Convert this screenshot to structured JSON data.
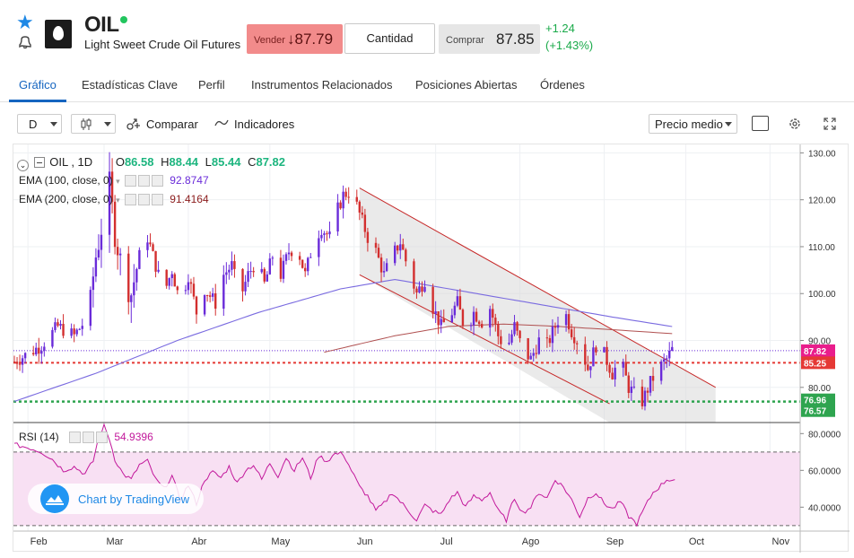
{
  "header": {
    "symbol": "OIL",
    "full_name": "Light Sweet Crude Oil Futures",
    "sell_label": "Vender",
    "sell_price": "↓87.79",
    "quantity_label": "Cantidad",
    "buy_label": "Comprar",
    "buy_price": "87.85",
    "change_abs": "+1.24",
    "change_pct": "(+1.43%)",
    "live_color": "#22c55e"
  },
  "tabs": [
    {
      "label": "Gráfico",
      "active": true
    },
    {
      "label": "Estadísticas Clave"
    },
    {
      "label": "Perfil"
    },
    {
      "label": "Instrumentos Relacionados"
    },
    {
      "label": "Posiciones Abiertas"
    },
    {
      "label": "Órdenes"
    }
  ],
  "toolbar": {
    "interval": "D",
    "compare_label": "Comparar",
    "indicators_label": "Indicadores",
    "price_type": "Precio medio"
  },
  "legend": {
    "title": "OIL , 1D",
    "o_label": "O",
    "o": "86.58",
    "h_label": "H",
    "h": "88.44",
    "l_label": "L",
    "l": "85.44",
    "c_label": "C",
    "c": "87.82",
    "ema100_label": "EMA (100, close, 0)",
    "ema100_value": "92.8747",
    "ema200_label": "EMA (200, close, 0)",
    "ema200_value": "91.4164",
    "rsi_label": "RSI (14)",
    "rsi_value": "54.9396"
  },
  "branding": "Chart by TradingView",
  "price_tags": {
    "last": "87.82",
    "red_line": "85.25",
    "green_line": "76.96",
    "low": "76.57"
  },
  "colors": {
    "up": "#6a2bd9",
    "down": "#d32f2f",
    "ema100": "#7a6be0",
    "ema200": "#b05050",
    "rsi": "#c2189b",
    "channel": "#c62828",
    "red_line": "#e53935",
    "green_line": "#2ea44f",
    "last_tag": "#e91e8c"
  },
  "chart_data": {
    "type": "candlestick",
    "price_axis_ticks": [
      130,
      120,
      110,
      100,
      90,
      80
    ],
    "price_axis_labels": [
      "130.00",
      "120.00",
      "110.00",
      "100.00",
      "90.00",
      "80.00"
    ],
    "rsi_axis_ticks": [
      80,
      60,
      40
    ],
    "rsi_axis_labels": [
      "80.0000",
      "60.0000",
      "40.0000"
    ],
    "rsi_bands": [
      70,
      30
    ],
    "x_labels": [
      "Feb",
      "Mar",
      "Abr",
      "May",
      "Jun",
      "Jul",
      "Ago",
      "Sep",
      "Oct",
      "Nov"
    ],
    "x_label_days": [
      5,
      33,
      64,
      94,
      125,
      155,
      186,
      217,
      247,
      278
    ],
    "ylim": [
      72.5,
      131.8
    ],
    "rsi_ylim": [
      27,
      86
    ],
    "close_anchors": [
      [
        0,
        85.5
      ],
      [
        6,
        87.5
      ],
      [
        10,
        89
      ],
      [
        16,
        93
      ],
      [
        22,
        91
      ],
      [
        27,
        95
      ],
      [
        30,
        108
      ],
      [
        33,
        117
      ],
      [
        35,
        123
      ],
      [
        37,
        113
      ],
      [
        40,
        104
      ],
      [
        43,
        100
      ],
      [
        46,
        108
      ],
      [
        49,
        112
      ],
      [
        52,
        106
      ],
      [
        55,
        100
      ],
      [
        58,
        105
      ],
      [
        61,
        98
      ],
      [
        64,
        104
      ],
      [
        67,
        96
      ],
      [
        70,
        101
      ],
      [
        74,
        98
      ],
      [
        77,
        104
      ],
      [
        80,
        106
      ],
      [
        83,
        99
      ],
      [
        86,
        104
      ],
      [
        89,
        107
      ],
      [
        92,
        102
      ],
      [
        95,
        108
      ],
      [
        98,
        104
      ],
      [
        101,
        109
      ],
      [
        104,
        110
      ],
      [
        107,
        104
      ],
      [
        110,
        111
      ],
      [
        113,
        114
      ],
      [
        116,
        112
      ],
      [
        119,
        118
      ],
      [
        121,
        121
      ],
      [
        124,
        122
      ],
      [
        127,
        117
      ],
      [
        130,
        112
      ],
      [
        133,
        109
      ],
      [
        136,
        104
      ],
      [
        139,
        108
      ],
      [
        142,
        111
      ],
      [
        145,
        105
      ],
      [
        148,
        100
      ],
      [
        151,
        103
      ],
      [
        154,
        97
      ],
      [
        157,
        93
      ],
      [
        160,
        95
      ],
      [
        163,
        98
      ],
      [
        166,
        92
      ],
      [
        169,
        96
      ],
      [
        172,
        94
      ],
      [
        175,
        97
      ],
      [
        178,
        91
      ],
      [
        181,
        88
      ],
      [
        184,
        93
      ],
      [
        187,
        88
      ],
      [
        190,
        86
      ],
      [
        193,
        90
      ],
      [
        196,
        89
      ],
      [
        199,
        93
      ],
      [
        202,
        97
      ],
      [
        205,
        92
      ],
      [
        208,
        89
      ],
      [
        211,
        84
      ],
      [
        214,
        89
      ],
      [
        217,
        87
      ],
      [
        220,
        83
      ],
      [
        223,
        86
      ],
      [
        226,
        80
      ],
      [
        229,
        78
      ],
      [
        231,
        77
      ],
      [
        234,
        81
      ],
      [
        237,
        84
      ],
      [
        240,
        86
      ],
      [
        242,
        88
      ],
      [
        243,
        87.82
      ]
    ],
    "ema100": [
      [
        0,
        77
      ],
      [
        30,
        83
      ],
      [
        60,
        90
      ],
      [
        90,
        96
      ],
      [
        120,
        101
      ],
      [
        140,
        103
      ],
      [
        160,
        101
      ],
      [
        180,
        99
      ],
      [
        200,
        97
      ],
      [
        220,
        95
      ],
      [
        243,
        92.87
      ]
    ],
    "ema200_start_day": 114,
    "ema200": [
      [
        114,
        87.5
      ],
      [
        140,
        91
      ],
      [
        160,
        93
      ],
      [
        180,
        93.5
      ],
      [
        200,
        93
      ],
      [
        220,
        92.3
      ],
      [
        243,
        91.42
      ]
    ],
    "channel_upper": [
      [
        127,
        122.5
      ],
      [
        258,
        80
      ]
    ],
    "channel_lower": [
      [
        127,
        104
      ],
      [
        219,
        76.5
      ]
    ],
    "rsi_anchors": [
      [
        0,
        74
      ],
      [
        6,
        72
      ],
      [
        10,
        70
      ],
      [
        14,
        66
      ],
      [
        18,
        60
      ],
      [
        22,
        62
      ],
      [
        26,
        58
      ],
      [
        29,
        65
      ],
      [
        31,
        78
      ],
      [
        33,
        84
      ],
      [
        35,
        77
      ],
      [
        37,
        66
      ],
      [
        40,
        58
      ],
      [
        43,
        55
      ],
      [
        46,
        63
      ],
      [
        49,
        65
      ],
      [
        52,
        55
      ],
      [
        55,
        50
      ],
      [
        58,
        57
      ],
      [
        61,
        44
      ],
      [
        64,
        52
      ],
      [
        67,
        42
      ],
      [
        70,
        55
      ],
      [
        73,
        59
      ],
      [
        76,
        56
      ],
      [
        79,
        62
      ],
      [
        82,
        53
      ],
      [
        85,
        60
      ],
      [
        88,
        63
      ],
      [
        91,
        55
      ],
      [
        94,
        64
      ],
      [
        97,
        57
      ],
      [
        100,
        67
      ],
      [
        103,
        60
      ],
      [
        106,
        67
      ],
      [
        109,
        56
      ],
      [
        112,
        68
      ],
      [
        115,
        65
      ],
      [
        118,
        69
      ],
      [
        121,
        69
      ],
      [
        124,
        60
      ],
      [
        127,
        51
      ],
      [
        130,
        46
      ],
      [
        133,
        38
      ],
      [
        136,
        42
      ],
      [
        139,
        48
      ],
      [
        142,
        43
      ],
      [
        145,
        38
      ],
      [
        148,
        33
      ],
      [
        151,
        41
      ],
      [
        154,
        38
      ],
      [
        157,
        36
      ],
      [
        160,
        44
      ],
      [
        163,
        48
      ],
      [
        166,
        40
      ],
      [
        169,
        46
      ],
      [
        172,
        44
      ],
      [
        175,
        48
      ],
      [
        178,
        38
      ],
      [
        181,
        33
      ],
      [
        184,
        45
      ],
      [
        187,
        37
      ],
      [
        190,
        40
      ],
      [
        193,
        48
      ],
      [
        196,
        45
      ],
      [
        199,
        55
      ],
      [
        202,
        51
      ],
      [
        205,
        44
      ],
      [
        208,
        35
      ],
      [
        211,
        45
      ],
      [
        214,
        48
      ],
      [
        217,
        42
      ],
      [
        220,
        39
      ],
      [
        223,
        43
      ],
      [
        226,
        35
      ],
      [
        229,
        31
      ],
      [
        232,
        40
      ],
      [
        235,
        48
      ],
      [
        238,
        52
      ],
      [
        240,
        55
      ],
      [
        243,
        54.94
      ]
    ]
  }
}
